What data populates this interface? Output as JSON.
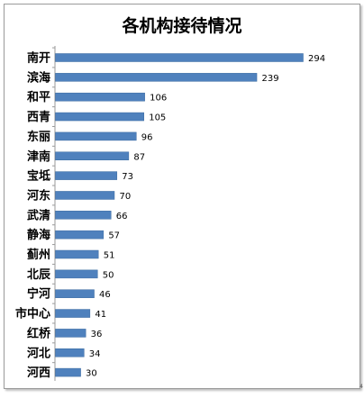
{
  "chart_data": {
    "type": "bar",
    "orientation": "horizontal",
    "title": "各机构接待情况",
    "categories": [
      "南开",
      "滨海",
      "和平",
      "西青",
      "东丽",
      "津南",
      "宝坻",
      "河东",
      "武清",
      "静海",
      "蓟州",
      "北辰",
      "宁河",
      "市中心",
      "红桥",
      "河北",
      "河西"
    ],
    "values": [
      294,
      239,
      106,
      105,
      96,
      87,
      73,
      70,
      66,
      57,
      51,
      50,
      46,
      41,
      36,
      34,
      30
    ],
    "xlabel": "",
    "ylabel": "",
    "xlim": [
      0,
      294
    ],
    "grid": false,
    "legend": "none",
    "bar_color": "#4f81bd",
    "data_labels": true
  },
  "corner_mark": "4"
}
